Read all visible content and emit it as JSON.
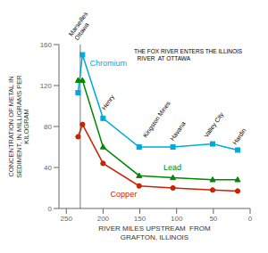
{
  "chart_data": {
    "type": "line",
    "x": [
      234,
      228,
      200,
      151,
      105,
      51,
      17
    ],
    "series": [
      {
        "name": "Chromium",
        "color": "#00aadd",
        "marker": "square",
        "values": [
          113,
          150,
          88,
          60,
          60,
          63,
          57
        ]
      },
      {
        "name": "Lead",
        "color": "#008800",
        "marker": "triangle",
        "values": [
          125,
          125,
          60,
          32,
          30,
          28,
          28
        ]
      },
      {
        "name": "Copper",
        "color": "#cc2200",
        "marker": "circle",
        "values": [
          70,
          82,
          44,
          22,
          20,
          18,
          17
        ]
      }
    ],
    "xlabel": "RIVER MILES UPSTREAM  FROM\nGRAFTON, ILLINOIS",
    "ylabel": "CONCENTRATION OF METAL IN\nSEDIMENT, IN MILLIGRAMS PER\nKILOGRAM",
    "xlim": [
      260,
      0
    ],
    "ylim": [
      0,
      160
    ],
    "xticks": [
      250,
      200,
      150,
      100,
      50,
      0
    ],
    "yticks": [
      0,
      40,
      80,
      120,
      160
    ],
    "annotations": [
      "Marseilles\nOttawa",
      "Henry",
      "Kingston Mines",
      "Havana",
      "Valley City",
      "Hardin",
      "THE FOX RIVER ENTERS THE ILLINOIS\n  RIVER  AT OTTAWA"
    ],
    "reference_lines": [
      {
        "x": 231,
        "color": "#555555"
      }
    ],
    "grid": false
  }
}
